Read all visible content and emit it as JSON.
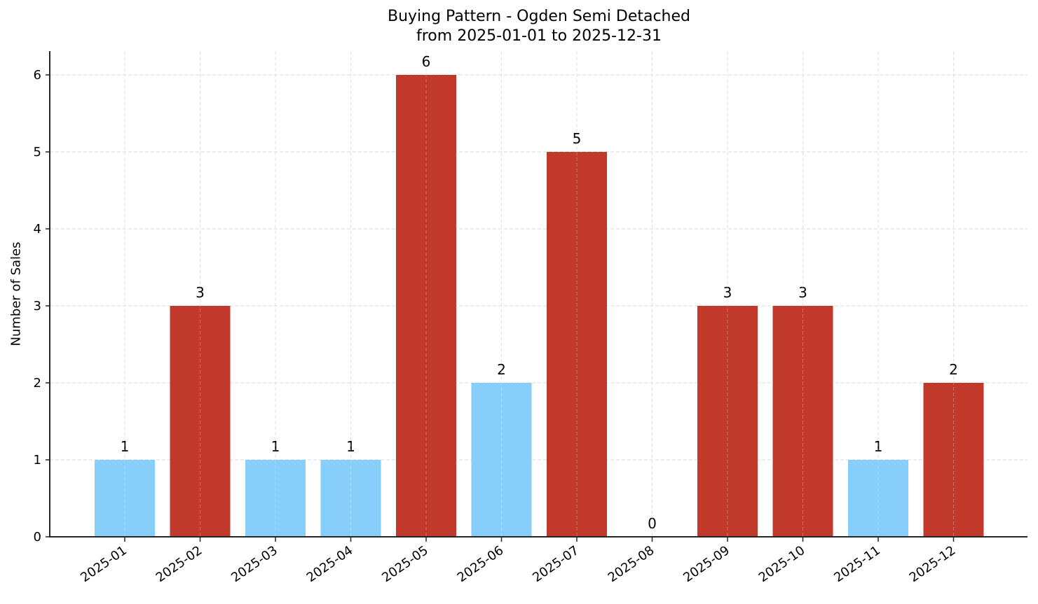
{
  "chart": {
    "title_line1": "Buying Pattern - Ogden Semi Detached",
    "title_line2": "from 2025-01-01 to 2025-12-31",
    "ylabel": "Number of Sales"
  },
  "colors": {
    "high": "#c0392b",
    "low": "#87cefa",
    "grid": "#d9d9d9",
    "axis": "#262626"
  },
  "chart_data": {
    "type": "bar",
    "title": "Buying Pattern - Ogden Semi Detached\nfrom 2025-01-01 to 2025-12-31",
    "xlabel": "",
    "ylabel": "Number of Sales",
    "categories": [
      "2025-01",
      "2025-02",
      "2025-03",
      "2025-04",
      "2025-05",
      "2025-06",
      "2025-07",
      "2025-08",
      "2025-09",
      "2025-10",
      "2025-11",
      "2025-12"
    ],
    "values": [
      1,
      3,
      1,
      1,
      6,
      2,
      5,
      0,
      3,
      3,
      1,
      2
    ],
    "bar_colors": [
      "#87cefa",
      "#c0392b",
      "#87cefa",
      "#87cefa",
      "#c0392b",
      "#87cefa",
      "#c0392b",
      "#c0392b",
      "#c0392b",
      "#c0392b",
      "#87cefa",
      "#c0392b"
    ],
    "data_labels": [
      "1",
      "3",
      "1",
      "1",
      "6",
      "2",
      "5",
      "0",
      "3",
      "3",
      "1",
      "2"
    ],
    "yticks": [
      0,
      1,
      2,
      3,
      4,
      5,
      6
    ],
    "ylim": [
      0,
      6.3
    ],
    "grid": true,
    "grid_style": "dashed",
    "legend": null,
    "xtick_rotation": 35
  }
}
